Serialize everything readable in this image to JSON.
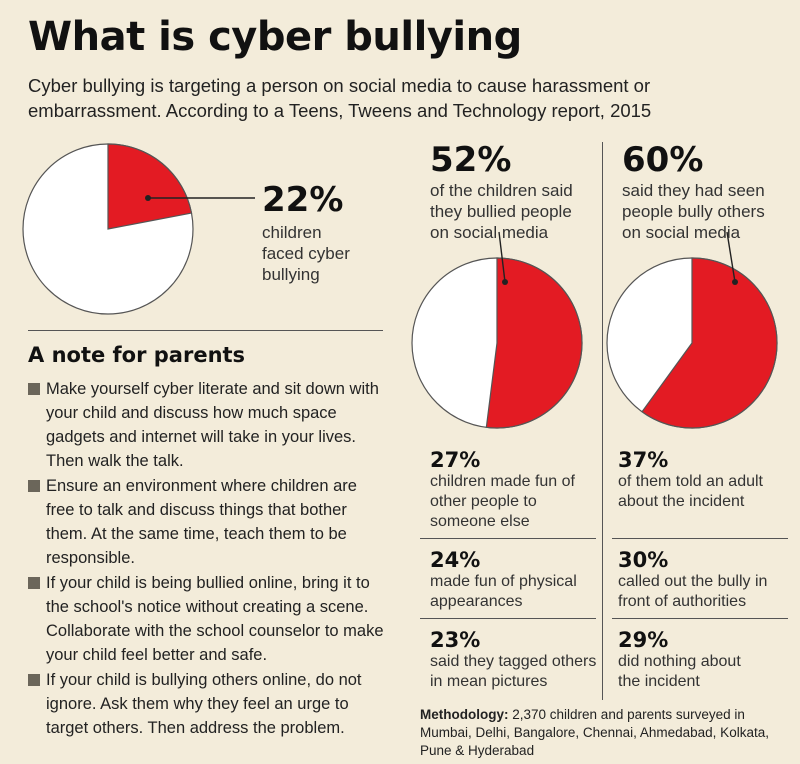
{
  "title": "What is cyber bullying",
  "subtitle": "Cyber bullying is targeting a person on social media to cause harassment or embarrassment. According to a Teens, Tweens and Technology report, 2015",
  "colors": {
    "background": "#f3ecda",
    "accent": "#e31b23",
    "pie_rest": "#ffffff"
  },
  "chart_data": [
    {
      "type": "pie",
      "values": [
        22,
        78
      ],
      "highlight_label": "22%",
      "annotation": [
        "children",
        "faced cyber",
        "bullying"
      ]
    },
    {
      "type": "pie",
      "values": [
        52,
        48
      ],
      "highlight_label": "52%",
      "annotation": [
        "of the children said",
        "they bullied people",
        "on social media"
      ]
    },
    {
      "type": "pie",
      "values": [
        60,
        40
      ],
      "highlight_label": "60%",
      "annotation": [
        "said they had seen",
        "people bully others",
        "on social media"
      ]
    }
  ],
  "left_stats": [
    {
      "pct": "27%",
      "lines": [
        "children made fun of",
        "other people to",
        "someone else"
      ]
    },
    {
      "pct": "24%",
      "lines": [
        "made fun of physical",
        "appearances"
      ]
    },
    {
      "pct": "23%",
      "lines": [
        "said they tagged others",
        "in mean pictures"
      ]
    }
  ],
  "right_stats": [
    {
      "pct": "37%",
      "lines": [
        "of them told an adult",
        "about the incident"
      ]
    },
    {
      "pct": "30%",
      "lines": [
        "called out the bully in",
        "front of authorities"
      ]
    },
    {
      "pct": "29%",
      "lines": [
        "did nothing about",
        "the incident"
      ]
    }
  ],
  "parents": {
    "heading": "A note for parents",
    "items": [
      "Make yourself cyber literate and sit down with your child and discuss how much space gadgets and internet will take in your lives. Then walk the talk.",
      "Ensure an environment where children are free to talk and discuss things that bother them. At the same time, teach them to be responsible.",
      "If your child is being bullied online, bring it to the school's notice without creating a scene. Collaborate with the school counselor to make your child feel better and safe.",
      "If your child is bullying others online, do not ignore. Ask them why they feel an urge to target others. Then address the problem."
    ]
  },
  "methodology": {
    "label": "Methodology:",
    "text": "2,370 children and parents surveyed in Mumbai, Delhi, Bangalore, Chennai, Ahmedabad, Kolkata, Pune & Hyderabad"
  }
}
